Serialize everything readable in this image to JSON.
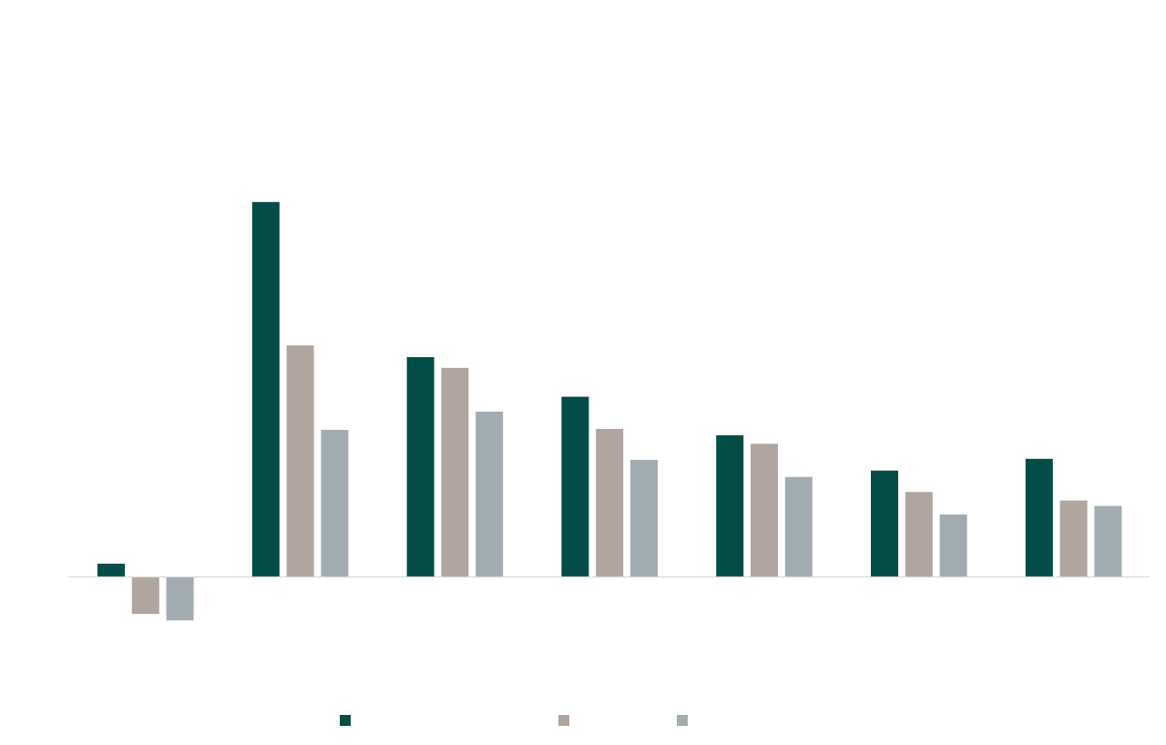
{
  "chart_data": {
    "type": "bar",
    "categories": [
      "",
      "",
      "",
      "",
      "",
      "",
      ""
    ],
    "series": [
      {
        "color": "#034d46",
        "values": [
          0.6,
          17.5,
          10.25,
          8.4,
          6.6,
          4.95,
          5.5
        ]
      },
      {
        "color": "#b0a59f",
        "values": [
          -1.75,
          10.8,
          9.75,
          6.9,
          6.2,
          3.95,
          3.55
        ]
      },
      {
        "color": "#a0acb0",
        "values": [
          -2.05,
          6.85,
          7.7,
          5.45,
          4.65,
          2.9,
          3.3
        ]
      }
    ],
    "ylim": [
      -5,
      25
    ],
    "grid": false,
    "legend_position": "bottom-center",
    "zero_line_color": "#d9d9d9"
  }
}
